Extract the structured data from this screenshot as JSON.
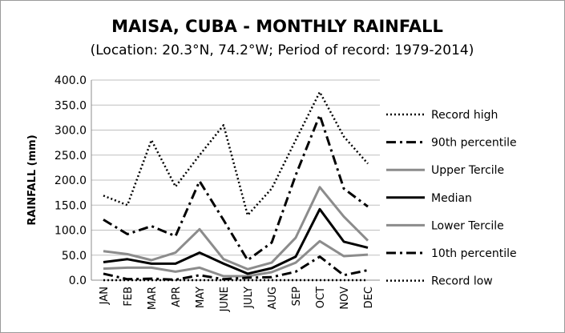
{
  "chart_data": {
    "type": "line",
    "title": "MAISA, CUBA - MONTHLY RAINFALL",
    "subtitle": "(Location: 20.3°N, 74.2°W; Period of record: 1979-2014)",
    "xlabel": "",
    "ylabel": "RAINFALL (mm)",
    "ylim": [
      0,
      400
    ],
    "yticks": [
      "0.0",
      "50.0",
      "100.0",
      "150.0",
      "200.0",
      "250.0",
      "300.0",
      "350.0",
      "400.0"
    ],
    "categories": [
      "JAN",
      "FEB",
      "MAR",
      "APR",
      "MAY",
      "JUNE",
      "JULY",
      "AUG",
      "SEP",
      "OCT",
      "NOV",
      "DEC"
    ],
    "grid": true,
    "legend_position": "right",
    "series": [
      {
        "name": "Record high",
        "color": "#000000",
        "style": "dotted",
        "values": [
          169,
          150,
          280,
          187,
          250,
          310,
          130,
          183,
          280,
          376,
          287,
          233
        ]
      },
      {
        "name": "90th percentile",
        "color": "#000000",
        "style": "dashdot",
        "values": [
          121,
          92,
          108,
          88,
          198,
          120,
          40,
          75,
          210,
          330,
          183,
          147
        ]
      },
      {
        "name": "Upper Tercile",
        "color": "#8c8c8c",
        "style": "solid",
        "values": [
          58,
          52,
          40,
          55,
          102,
          42,
          22,
          35,
          85,
          186,
          127,
          79
        ]
      },
      {
        "name": "Median",
        "color": "#000000",
        "style": "solid-thick",
        "values": [
          36,
          42,
          33,
          33,
          55,
          33,
          13,
          24,
          47,
          142,
          77,
          65
        ]
      },
      {
        "name": "Lower Tercile",
        "color": "#8c8c8c",
        "style": "solid",
        "values": [
          23,
          25,
          25,
          17,
          25,
          8,
          8,
          16,
          35,
          78,
          48,
          51
        ]
      },
      {
        "name": "10th percentile",
        "color": "#000000",
        "style": "dashdot",
        "values": [
          13,
          2,
          3,
          1,
          10,
          2,
          5,
          6,
          17,
          47,
          10,
          20
        ]
      },
      {
        "name": "Record low",
        "color": "#000000",
        "style": "dotted",
        "values": [
          0,
          0,
          0,
          0,
          0,
          0,
          0,
          0,
          0,
          0,
          0,
          0
        ]
      }
    ]
  }
}
